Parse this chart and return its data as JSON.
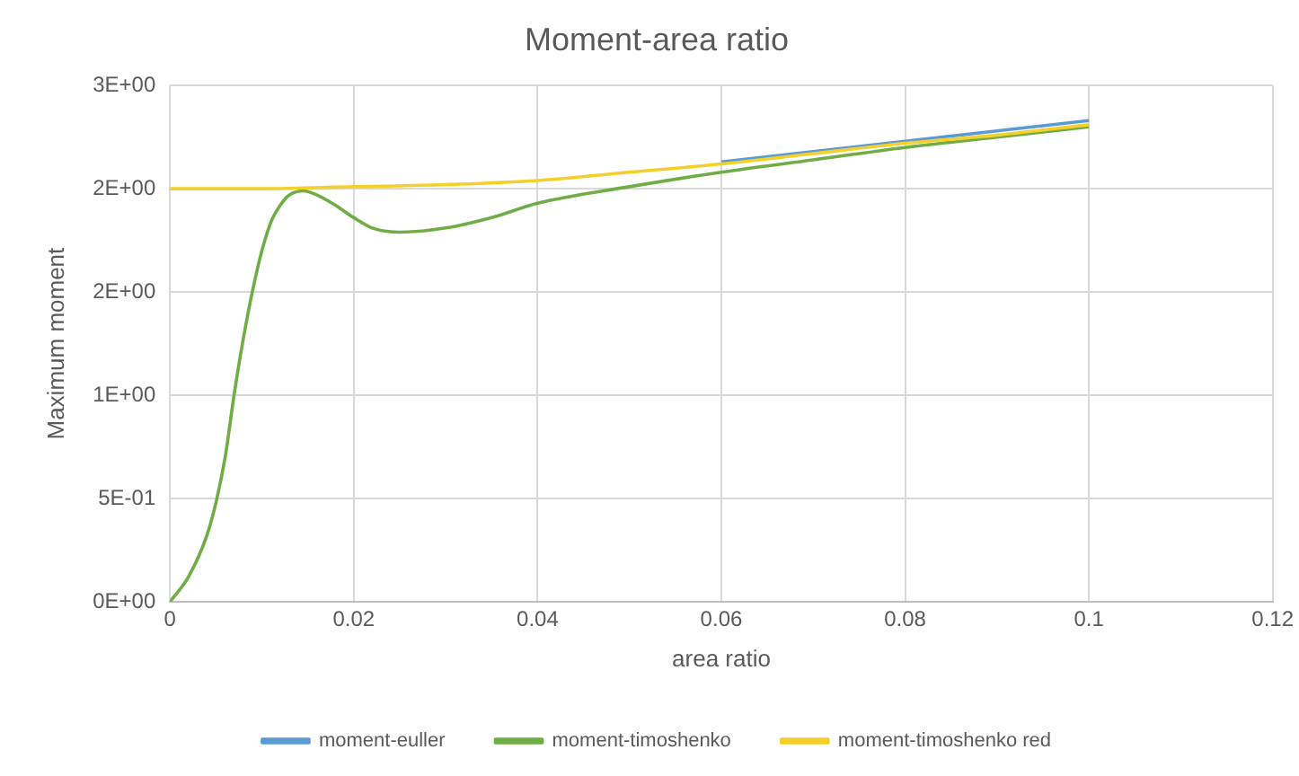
{
  "chart_data": {
    "type": "line",
    "title": "Moment-area ratio",
    "xlabel": "area ratio",
    "ylabel": "Maximum moment",
    "xlim": [
      0,
      0.12
    ],
    "xticks": [
      0,
      0.02,
      0.04,
      0.06,
      0.08,
      0.1,
      0.12
    ],
    "ylim": [
      0,
      2.5
    ],
    "yticks": [
      {
        "value": 0,
        "label": "0E+00"
      },
      {
        "value": 0.5,
        "label": "5E-01"
      },
      {
        "value": 1,
        "label": "1E+00"
      },
      {
        "value": 1.5,
        "label": "2E+00"
      },
      {
        "value": 2,
        "label": "2E+00"
      },
      {
        "value": 2.5,
        "label": "3E+00"
      }
    ],
    "grid": true,
    "legend": "bottom",
    "marker": "none",
    "line_style": "solid",
    "series": [
      {
        "name": "moment-euller",
        "color": "#5b9bd5",
        "x": [
          0.06,
          0.07,
          0.08,
          0.09,
          0.1
        ],
        "values": [
          2.13,
          2.18,
          2.23,
          2.28,
          2.33
        ]
      },
      {
        "name": "moment-timoshenko",
        "color": "#70ad47",
        "x": [
          0,
          0.002,
          0.004,
          0.005,
          0.006,
          0.007,
          0.008,
          0.009,
          0.01,
          0.011,
          0.012,
          0.013,
          0.0145,
          0.016,
          0.018,
          0.02,
          0.022,
          0.025,
          0.03,
          0.035,
          0.04,
          0.05,
          0.06,
          0.07,
          0.08,
          0.09,
          0.1
        ],
        "values": [
          0,
          0.12,
          0.32,
          0.48,
          0.7,
          1.01,
          1.28,
          1.51,
          1.7,
          1.84,
          1.92,
          1.97,
          1.99,
          1.97,
          1.92,
          1.86,
          1.81,
          1.79,
          1.81,
          1.86,
          1.93,
          2.01,
          2.08,
          2.14,
          2.2,
          2.25,
          2.3
        ]
      },
      {
        "name": "moment-timoshenko red",
        "color": "#f5d02a",
        "x": [
          0,
          0.01,
          0.02,
          0.03,
          0.04,
          0.05,
          0.06,
          0.07,
          0.08,
          0.09,
          0.1
        ],
        "values": [
          2.0,
          2.0,
          2.01,
          2.02,
          2.04,
          2.08,
          2.12,
          2.17,
          2.22,
          2.26,
          2.31
        ]
      }
    ]
  }
}
